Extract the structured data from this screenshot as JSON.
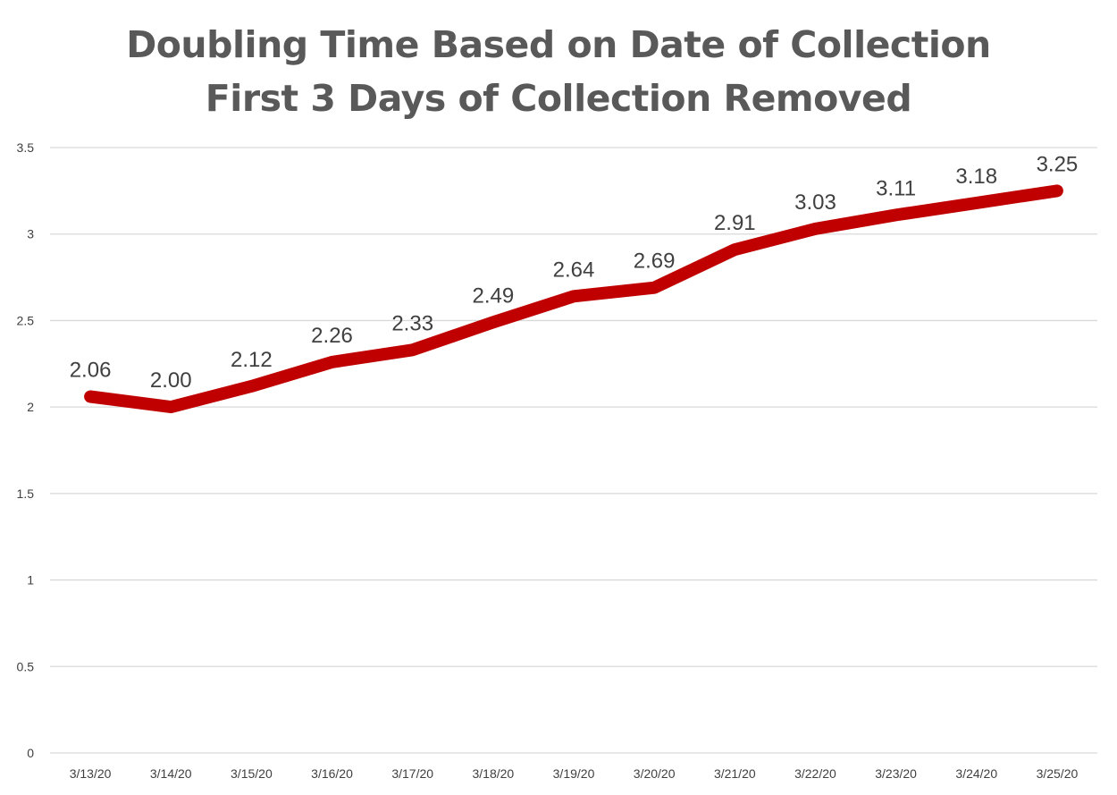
{
  "chart_data": {
    "type": "line",
    "title_lines": [
      "Doubling Time Based on Date of Collection",
      "First 3 Days of Collection Removed"
    ],
    "xlabel": "",
    "ylabel": "",
    "categories": [
      "3/13/20",
      "3/14/20",
      "3/15/20",
      "3/16/20",
      "3/17/20",
      "3/18/20",
      "3/19/20",
      "3/20/20",
      "3/21/20",
      "3/22/20",
      "3/23/20",
      "3/24/20",
      "3/25/20"
    ],
    "series": [
      {
        "values": [
          2.06,
          2.0,
          2.12,
          2.26,
          2.33,
          2.49,
          2.64,
          2.69,
          2.91,
          3.03,
          3.11,
          3.18,
          3.25
        ],
        "data_labels": [
          "2.06",
          "2.00",
          "2.12",
          "2.26",
          "2.33",
          "2.49",
          "2.64",
          "2.69",
          "2.91",
          "3.03",
          "3.11",
          "3.18",
          "3.25"
        ],
        "color": "#c00000"
      }
    ],
    "ylim": [
      0,
      3.5
    ],
    "y_ticks": [
      {
        "value": 0,
        "label": "0"
      },
      {
        "value": 0.5,
        "label": "0.5"
      },
      {
        "value": 1,
        "label": "1"
      },
      {
        "value": 1.5,
        "label": "1.5"
      },
      {
        "value": 2,
        "label": "2"
      },
      {
        "value": 2.5,
        "label": "2.5"
      },
      {
        "value": 3,
        "label": "3"
      },
      {
        "value": 3.5,
        "label": "3.5"
      }
    ],
    "grid": true,
    "legend": "none",
    "colors": {
      "title": "#595959",
      "gridline": "#d9d9d9",
      "tick_label": "#404040",
      "data_label": "#404040"
    }
  }
}
